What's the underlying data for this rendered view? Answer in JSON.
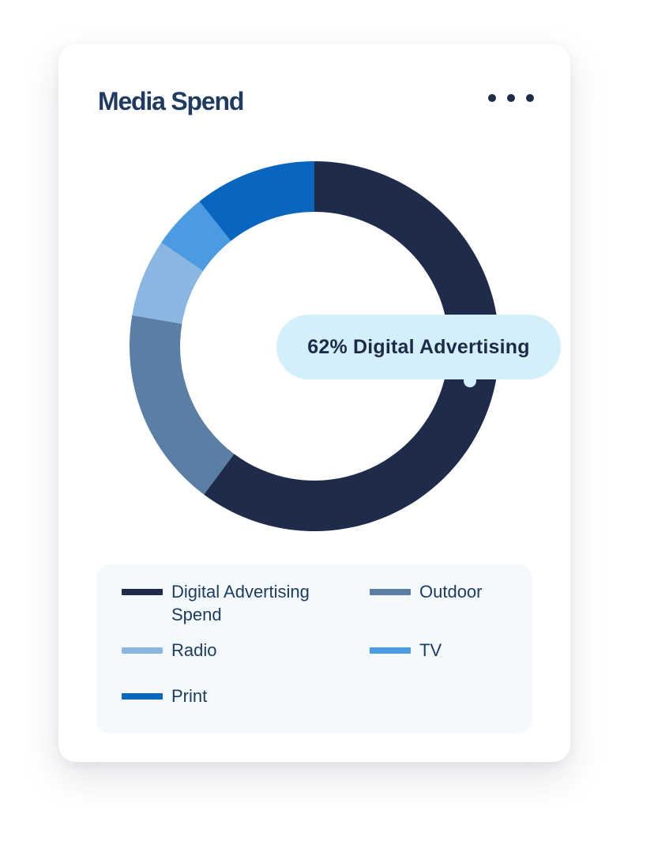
{
  "card": {
    "title": "Media Spend",
    "menu_icon": "more-horizontal-icon"
  },
  "tooltip": {
    "text": "62% Digital Advertising"
  },
  "chart_data": {
    "type": "pie",
    "variant": "donut",
    "categories": [
      "Digital Advertising Spend",
      "Outdoor",
      "Radio",
      "TV",
      "Print"
    ],
    "values": [
      62,
      18,
      7,
      5,
      11
    ],
    "colors": [
      "#1e2b4a",
      "#5a7ea4",
      "#8ab6e2",
      "#4c9be2",
      "#0966bf"
    ],
    "legend_position": "bottom",
    "highlighted": "Digital Advertising Spend"
  },
  "legend": {
    "items": [
      {
        "label": "Digital Advertising Spend",
        "color": "#1e2b4a"
      },
      {
        "label": "Outdoor",
        "color": "#5a7ea4"
      },
      {
        "label": "Radio",
        "color": "#8ab6e2"
      },
      {
        "label": "TV",
        "color": "#4c9be2"
      },
      {
        "label": "Print",
        "color": "#0966bf"
      }
    ]
  }
}
